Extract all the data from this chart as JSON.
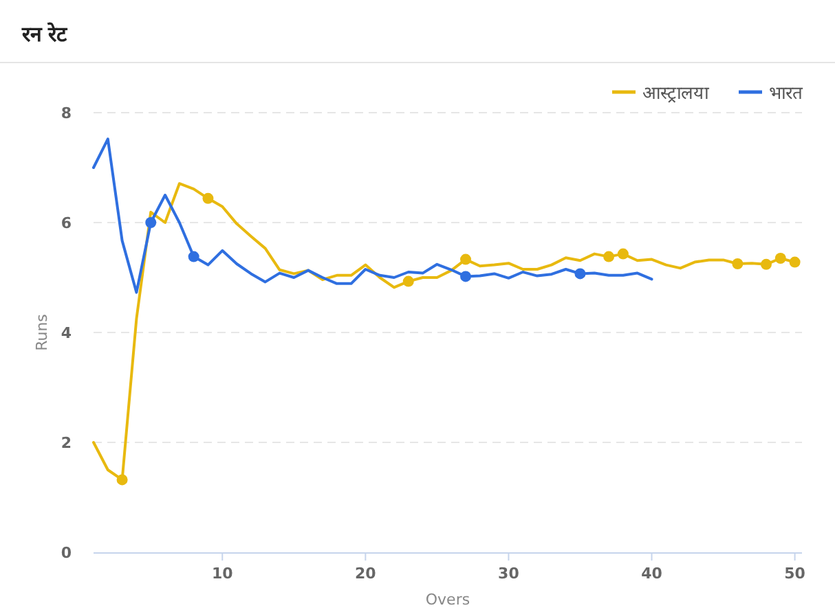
{
  "chart_data": {
    "type": "line",
    "title": "रन रेट",
    "xlabel": "Overs",
    "ylabel": "Runs",
    "xlim": [
      1,
      50.5
    ],
    "xticks": [
      10,
      20,
      30,
      40,
      50
    ],
    "ylim": [
      0,
      8
    ],
    "yticks": [
      0,
      2,
      4,
      6,
      8
    ],
    "grid": "y",
    "legend": "top right",
    "marker": "none",
    "line_style": "solid",
    "x": [
      1,
      2,
      3,
      4,
      5,
      6,
      7,
      8,
      9,
      10,
      11,
      12,
      13,
      14,
      15,
      16,
      17,
      18,
      19,
      20,
      21,
      22,
      23,
      24,
      25,
      26,
      27,
      28,
      29,
      30,
      31,
      32,
      33,
      34,
      35,
      36,
      37,
      38,
      39,
      40,
      41,
      42,
      43,
      44,
      45,
      46,
      47,
      48,
      49,
      50
    ],
    "series": [
      {
        "name": "आस्ट्रालया",
        "color": "#e8b90f",
        "values": [
          2.0,
          1.5,
          1.32,
          4.25,
          6.19,
          6.0,
          6.71,
          6.61,
          6.44,
          6.29,
          5.98,
          5.75,
          5.53,
          5.14,
          5.07,
          5.13,
          4.96,
          5.04,
          5.04,
          5.23,
          5.0,
          4.82,
          4.93,
          5.0,
          5.0,
          5.13,
          5.33,
          5.21,
          5.23,
          5.26,
          5.15,
          5.15,
          5.23,
          5.36,
          5.31,
          5.43,
          5.38,
          5.43,
          5.31,
          5.33,
          5.23,
          5.17,
          5.28,
          5.32,
          5.32,
          5.25,
          5.26,
          5.24,
          5.35,
          5.28
        ]
      },
      {
        "name": "भारत",
        "color": "#2f6fe0",
        "x": [
          1,
          2,
          3,
          4,
          5,
          6,
          7,
          8,
          9,
          10,
          11,
          12,
          13,
          14,
          15,
          16,
          17,
          18,
          19,
          20,
          21,
          22,
          23,
          24,
          25,
          26,
          27,
          28,
          29,
          30,
          31,
          32,
          33,
          34,
          35,
          36,
          37,
          38,
          39,
          40
        ],
        "values": [
          7.0,
          7.52,
          5.67,
          4.73,
          6.0,
          6.5,
          6.0,
          5.38,
          5.23,
          5.49,
          5.25,
          5.07,
          4.92,
          5.08,
          5.0,
          5.13,
          5.0,
          4.89,
          4.89,
          5.15,
          5.04,
          5.0,
          5.1,
          5.08,
          5.24,
          5.14,
          5.02,
          5.03,
          5.07,
          4.99,
          5.1,
          5.03,
          5.06,
          5.15,
          5.07,
          5.08,
          5.04,
          5.04,
          5.08,
          4.97
        ]
      },
      {
        "type": "scatter",
        "marker": "circle",
        "color": "#e8b90f",
        "x": [
          3,
          9,
          23,
          27,
          37,
          38,
          46,
          48,
          49,
          50
        ],
        "values": [
          1.32,
          6.44,
          4.93,
          5.33,
          5.38,
          5.43,
          5.25,
          5.24,
          5.35,
          5.28
        ]
      },
      {
        "type": "scatter",
        "marker": "circle",
        "color": "#2f6fe0",
        "x": [
          5,
          8,
          27,
          35
        ],
        "values": [
          6.0,
          5.38,
          5.02,
          5.07
        ]
      }
    ]
  }
}
